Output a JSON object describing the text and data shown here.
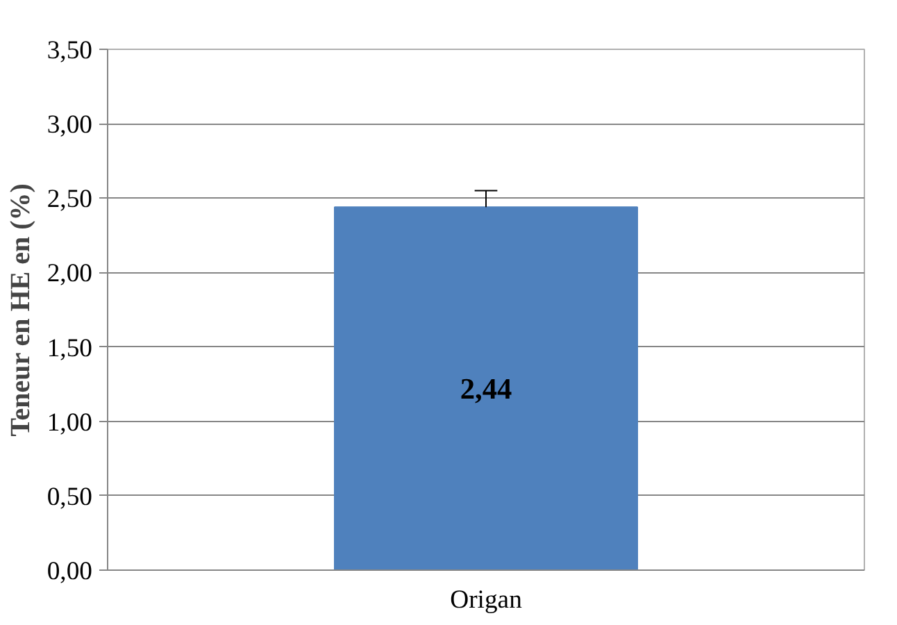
{
  "chart_data": {
    "type": "bar",
    "ylabel": "Teneur en HE en (%)",
    "categories": [
      "Origan"
    ],
    "values": [
      2.44
    ],
    "errors": [
      [
        2.44,
        2.55
      ]
    ],
    "value_labels": [
      "2,44"
    ],
    "color": "#4f81bd",
    "ylim": [
      0,
      3.5
    ],
    "yticks": [
      {
        "value": 0,
        "label": "0,00"
      },
      {
        "value": 0.5,
        "label": "0,50"
      },
      {
        "value": 1,
        "label": "1,00"
      },
      {
        "value": 1.5,
        "label": "1,50"
      },
      {
        "value": 2,
        "label": "2,00"
      },
      {
        "value": 2.5,
        "label": "2,50"
      },
      {
        "value": 3,
        "label": "3,00"
      },
      {
        "value": 3.5,
        "label": "3,50"
      }
    ],
    "grid": "y"
  }
}
